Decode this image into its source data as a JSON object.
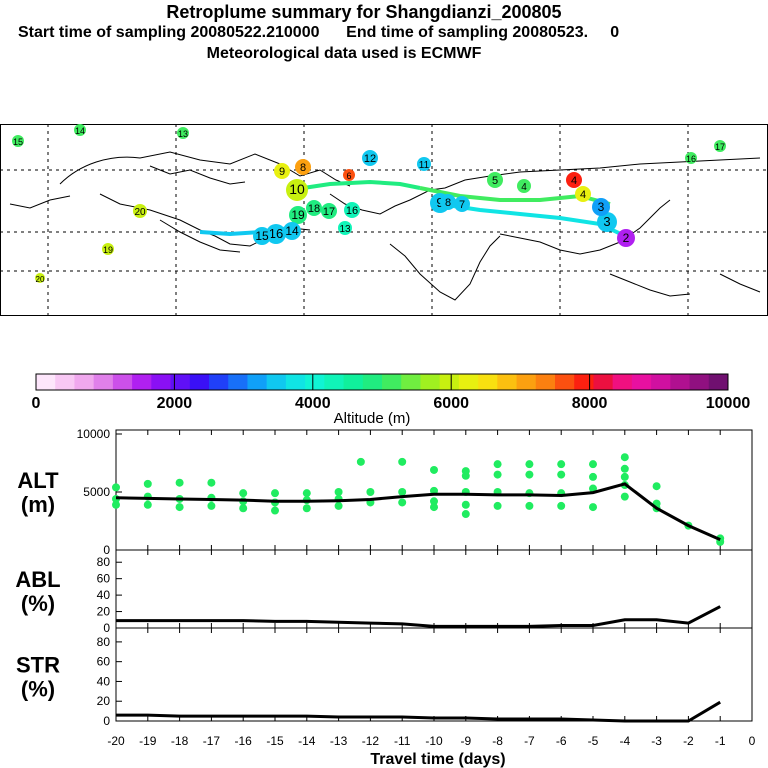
{
  "header": {
    "title": "Retroplume summary for Shangdianzi_200805",
    "start_label": "Start time of sampling 20080522.210000",
    "end_label": "End time of sampling 20080523.",
    "end_value": "0",
    "met_label": "Meteorological data used is ECMWF"
  },
  "colorbar": {
    "tick_labels": [
      "0",
      "2000",
      "4000",
      "6000",
      "8000",
      "10000"
    ],
    "xlabel": "Altitude (m)",
    "range": [
      0,
      10000
    ],
    "colors": [
      "#fde6fb",
      "#f8c8f4",
      "#f0a8ee",
      "#e080ea",
      "#cc50ea",
      "#b020f0",
      "#8a10f4",
      "#6010f6",
      "#3a10f6",
      "#2040f8",
      "#1870f8",
      "#10a0f8",
      "#10c8f0",
      "#10e4e4",
      "#10f4d4",
      "#10f4b8",
      "#10f09c",
      "#20ec80",
      "#40ec60",
      "#70ee40",
      "#a0f020",
      "#c8f010",
      "#e8f010",
      "#f8e010",
      "#fcc010",
      "#fca010",
      "#fc8010",
      "#fc5010",
      "#fc2010",
      "#ec1040",
      "#f01080",
      "#e810a0",
      "#d010a0",
      "#b01090",
      "#901080",
      "#701070"
    ]
  },
  "map": {
    "labels": [
      {
        "text": "15",
        "color": "#40ec60"
      },
      {
        "text": "14",
        "color": "#40ec60"
      },
      {
        "text": "13",
        "color": "#40ec60"
      },
      {
        "text": "12",
        "color": "#10c8f0"
      },
      {
        "text": "11",
        "color": "#10c8f0"
      },
      {
        "text": "10",
        "color": "#c8f010"
      },
      {
        "text": "9",
        "color": "#e8f010"
      },
      {
        "text": "8",
        "color": "#fca010"
      },
      {
        "text": "6",
        "color": "#fc5010"
      },
      {
        "text": "4",
        "color": "#fc2010"
      },
      {
        "text": "4",
        "color": "#e8f010"
      },
      {
        "text": "3",
        "color": "#10c8f0"
      },
      {
        "text": "2",
        "color": "#b020f0"
      },
      {
        "text": "19",
        "color": "#20ec80"
      },
      {
        "text": "18",
        "color": "#20ec80"
      },
      {
        "text": "17",
        "color": "#20ec80"
      },
      {
        "text": "16",
        "color": "#10f4b8"
      },
      {
        "text": "16",
        "color": "#10c8f0"
      },
      {
        "text": "15",
        "color": "#10c8f0"
      },
      {
        "text": "14",
        "color": "#10c8f0"
      },
      {
        "text": "13",
        "color": "#10f4b8"
      },
      {
        "text": "20",
        "color": "#c8f010"
      },
      {
        "text": "9",
        "color": "#10c8f0"
      },
      {
        "text": "7",
        "color": "#10c8f0"
      },
      {
        "text": "8",
        "color": "#10c8f0"
      },
      {
        "text": "5",
        "color": "#40ec60"
      },
      {
        "text": "4",
        "color": "#40ec60"
      },
      {
        "text": "3",
        "color": "#10a0f8"
      },
      {
        "text": "17",
        "color": "#40ec60"
      },
      {
        "text": "16",
        "color": "#40ec60"
      },
      {
        "text": "20",
        "color": "#c8f010"
      },
      {
        "text": "19",
        "color": "#c8f010"
      }
    ]
  },
  "chart_data": [
    {
      "type": "scatter+line",
      "panel": "ALT",
      "ylabel": "ALT\n(m)",
      "ylabel_lines": [
        "ALT",
        "(m)"
      ],
      "ylim": [
        0,
        10000
      ],
      "yticks": [
        "0",
        "5000",
        "10000"
      ],
      "x": [
        -20,
        -19,
        -18,
        -17,
        -16,
        -15,
        -14,
        -13,
        -12,
        -11,
        -10,
        -9,
        -8,
        -7,
        -6,
        -5,
        -4,
        -3,
        -2,
        -1
      ],
      "line": [
        4500,
        4450,
        4400,
        4350,
        4300,
        4200,
        4200,
        4250,
        4350,
        4600,
        4800,
        4800,
        4750,
        4750,
        4700,
        4950,
        5700,
        3600,
        2100,
        900
      ],
      "points": [
        [
          -20,
          5400
        ],
        [
          -20,
          4400
        ],
        [
          -20,
          3900
        ],
        [
          -19,
          5700
        ],
        [
          -19,
          4600
        ],
        [
          -19,
          3900
        ],
        [
          -18,
          5800
        ],
        [
          -18,
          4400
        ],
        [
          -18,
          3700
        ],
        [
          -17,
          5800
        ],
        [
          -17,
          4500
        ],
        [
          -17,
          3800
        ],
        [
          -16,
          4900
        ],
        [
          -16,
          4200
        ],
        [
          -16,
          3600
        ],
        [
          -15,
          4900
        ],
        [
          -15,
          4100
        ],
        [
          -15,
          3400
        ],
        [
          -14,
          4900
        ],
        [
          -14,
          4300
        ],
        [
          -14,
          3600
        ],
        [
          -13,
          5000
        ],
        [
          -13,
          4400
        ],
        [
          -13,
          3800
        ],
        [
          -12.3,
          7600
        ],
        [
          -12,
          5000
        ],
        [
          -12,
          4100
        ],
        [
          -11,
          7600
        ],
        [
          -11,
          5000
        ],
        [
          -11,
          4100
        ],
        [
          -10,
          6900
        ],
        [
          -10,
          5100
        ],
        [
          -10,
          4200
        ],
        [
          -10,
          3700
        ],
        [
          -9,
          6800
        ],
        [
          -9,
          6400
        ],
        [
          -9,
          5000
        ],
        [
          -9,
          3900
        ],
        [
          -9,
          3100
        ],
        [
          -8,
          7400
        ],
        [
          -8,
          6500
        ],
        [
          -8,
          5000
        ],
        [
          -8,
          3800
        ],
        [
          -7,
          7400
        ],
        [
          -7,
          6500
        ],
        [
          -7,
          4900
        ],
        [
          -7,
          3800
        ],
        [
          -6,
          7400
        ],
        [
          -6,
          6500
        ],
        [
          -6,
          4900
        ],
        [
          -6,
          3800
        ],
        [
          -5,
          7400
        ],
        [
          -5,
          6300
        ],
        [
          -5,
          5300
        ],
        [
          -5,
          3700
        ],
        [
          -4,
          8000
        ],
        [
          -4,
          7000
        ],
        [
          -4,
          6300
        ],
        [
          -4,
          5600
        ],
        [
          -4,
          4600
        ],
        [
          -3,
          5500
        ],
        [
          -3,
          4000
        ],
        [
          -3,
          3600
        ],
        [
          -2,
          2100
        ],
        [
          -1,
          1000
        ],
        [
          -1,
          700
        ]
      ]
    },
    {
      "type": "line",
      "panel": "ABL",
      "ylabel_lines": [
        "ABL",
        "(%)"
      ],
      "ylim": [
        0,
        90
      ],
      "yticks": [
        "0",
        "20",
        "40",
        "60",
        "80"
      ],
      "x": [
        -20,
        -19,
        -18,
        -17,
        -16,
        -15,
        -14,
        -13,
        -12,
        -11,
        -10,
        -9,
        -8,
        -7,
        -6,
        -5,
        -4,
        -3,
        -2,
        -1
      ],
      "values": [
        9,
        9,
        9,
        9,
        9,
        8,
        8,
        7,
        6,
        5,
        2,
        2,
        2,
        2,
        3,
        3,
        10,
        10,
        6,
        26
      ]
    },
    {
      "type": "line",
      "panel": "STR",
      "ylabel_lines": [
        "STR",
        "(%)"
      ],
      "ylim": [
        0,
        90
      ],
      "yticks": [
        "0",
        "20",
        "40",
        "60",
        "80"
      ],
      "x": [
        -20,
        -19,
        -18,
        -17,
        -16,
        -15,
        -14,
        -13,
        -12,
        -11,
        -10,
        -9,
        -8,
        -7,
        -6,
        -5,
        -4,
        -3,
        -2,
        -1
      ],
      "values": [
        6,
        6,
        5,
        5,
        5,
        5,
        5,
        4,
        4,
        4,
        3,
        3,
        2,
        2,
        2,
        1,
        0,
        0,
        0,
        19
      ],
      "xlabel": "Travel time (days)",
      "xticks": [
        "-20",
        "-19",
        "-18",
        "-17",
        "-16",
        "-15",
        "-14",
        "-13",
        "-12",
        "-11",
        "-10",
        "-9",
        "-8",
        "-7",
        "-6",
        "-5",
        "-4",
        "-3",
        "-2",
        "-1",
        "0"
      ]
    }
  ]
}
